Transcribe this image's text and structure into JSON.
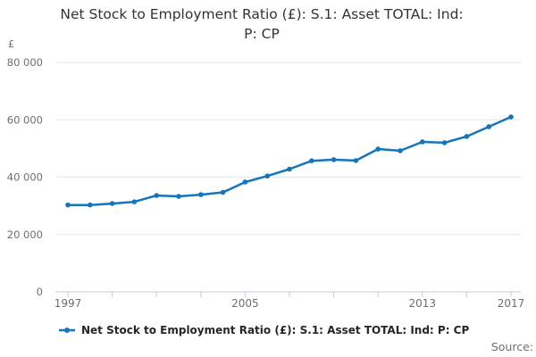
{
  "header": {
    "title": "Net Stock to Employment Ratio (£): S.1: Asset TOTAL: Ind: P: CP",
    "title_lines": [
      "Net Stock to Employment Ratio (£): S.1: Asset TOTAL: Ind:",
      "P: CP"
    ]
  },
  "chart_data": {
    "type": "line",
    "title": "Net Stock to Employment Ratio (£): S.1: Asset TOTAL: Ind: P: CP",
    "unit_label": "£",
    "x": [
      1997,
      1998,
      1999,
      2000,
      2001,
      2002,
      2003,
      2004,
      2005,
      2006,
      2007,
      2008,
      2009,
      2010,
      2011,
      2012,
      2013,
      2014,
      2015,
      2016,
      2017
    ],
    "series": [
      {
        "name": "Net Stock to Employment Ratio (£): S.1: Asset TOTAL: Ind: P: CP",
        "values": [
          30300,
          30300,
          30800,
          31400,
          33600,
          33300,
          33900,
          34700,
          38300,
          40400,
          42800,
          45700,
          46100,
          45800,
          49800,
          49200,
          52300,
          52000,
          54200,
          57600,
          61000
        ]
      }
    ],
    "ylim": [
      0,
      80000
    ],
    "yticks": [
      {
        "value": 0,
        "label": "0"
      },
      {
        "value": 20000,
        "label": "20 000"
      },
      {
        "value": 40000,
        "label": "40 000"
      },
      {
        "value": 60000,
        "label": "60 000"
      },
      {
        "value": 80000,
        "label": "80 000"
      }
    ],
    "xticks_every": 2,
    "xtick_labels": [
      {
        "value": 1997,
        "label": "1997"
      },
      {
        "value": 2005,
        "label": "2005"
      },
      {
        "value": 2013,
        "label": "2013"
      },
      {
        "value": 2017,
        "label": "2017"
      }
    ],
    "grid": true,
    "legend_position": "bottom",
    "marker": "circle"
  },
  "legend": {
    "label": "Net Stock to Employment Ratio (£): S.1: Asset TOTAL: Ind: P: CP"
  },
  "footer": {
    "source_label": "Source:"
  },
  "colors": {
    "line": "#1375bc",
    "grid": "#e6e6e6",
    "axis": "#c3cede",
    "title_text": "#333333",
    "tick_text": "#6e6e6e",
    "legend_text": "#262626",
    "source_text": "#6f6f6f"
  }
}
